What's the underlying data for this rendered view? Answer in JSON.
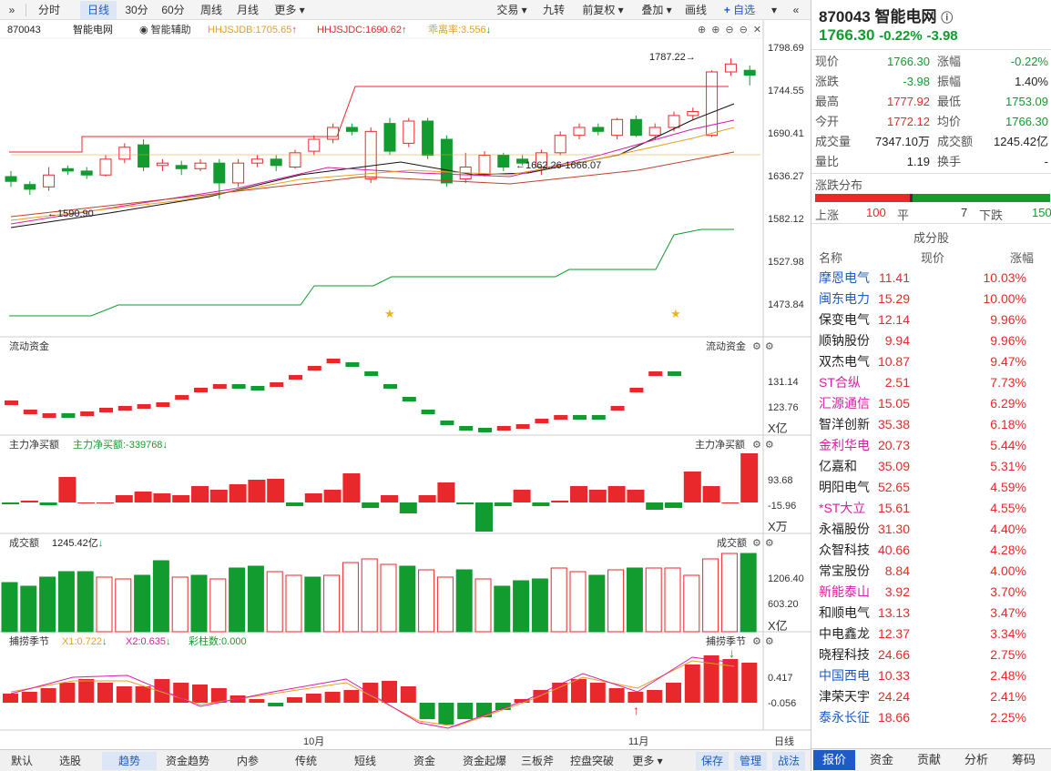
{
  "toolbar": {
    "periods": [
      "分时",
      "日线",
      "30分",
      "60分",
      "周线",
      "月线",
      "更多"
    ],
    "active": "日线",
    "right": [
      "交易",
      "九转",
      "前复权",
      "叠加",
      "画线",
      "自选"
    ]
  },
  "chart_header": {
    "code": "870043",
    "name": "智能电网",
    "indicator": "智能辅助",
    "hhjsjdb": "HHJSJDB:1705.65",
    "hhjsjdc": "HHJSJDC:1690.62",
    "deviation": "乖离率:3.556"
  },
  "price_axis": [
    "1798.69",
    "1744.55",
    "1690.41",
    "1636.27",
    "1582.12",
    "1527.98",
    "1473.84"
  ],
  "annotations": {
    "high": "1787.22",
    "low": "1590.90",
    "range": "1662.26-1666.07"
  },
  "panel_flow": {
    "title": "流动资金",
    "title_right": "流动资金",
    "axis": [
      "131.14",
      "123.76"
    ],
    "unit": "X亿"
  },
  "panel_main": {
    "title": "主力净买额",
    "value": "主力净买额:-339768",
    "title_right": "主力净买额",
    "axis": [
      "93.68",
      "-15.96"
    ],
    "unit": "X万"
  },
  "panel_amount": {
    "title": "成交额",
    "value": "1245.42亿",
    "title_right": "成交额",
    "axis": [
      "1206.40",
      "603.20"
    ],
    "unit": "X亿"
  },
  "panel_season": {
    "title": "捕捞季节",
    "x1": "X1:0.722",
    "x2": "X2:0.635",
    "bars": "彩柱数:0.000",
    "title_right": "捕捞季节",
    "axis": [
      "0.417",
      "-0.056"
    ]
  },
  "x_axis": {
    "oct": "10月",
    "nov": "11月",
    "mode": "日线"
  },
  "bottom": {
    "tabs": [
      "默认",
      "选股",
      "趋势",
      "资金趋势",
      "内参",
      "传统",
      "短线",
      "资金",
      "资金起爆",
      "三板斧",
      "控盘突破",
      "更多"
    ],
    "active": "趋势",
    "right": [
      "保存",
      "管理",
      "战法"
    ]
  },
  "quote": {
    "code": "870043",
    "name": "智能电网",
    "price": "1766.30",
    "pct": "-0.22%",
    "chg": "-3.98",
    "rows": [
      [
        "现价",
        "1766.30",
        "涨幅",
        "-0.22%"
      ],
      [
        "涨跌",
        "-3.98",
        "振幅",
        "1.40%"
      ],
      [
        "最高",
        "1777.92",
        "最低",
        "1753.09"
      ],
      [
        "今开",
        "1772.12",
        "均价",
        "1766.30"
      ],
      [
        "成交量",
        "7347.10万",
        "成交额",
        "1245.42亿"
      ],
      [
        "量比",
        "1.19",
        "换手",
        "-"
      ]
    ]
  },
  "distribution": {
    "title": "涨跌分布",
    "up_label": "上涨",
    "up": "100",
    "flat_label": "平",
    "flat": "7",
    "down_label": "下跌",
    "down": "150"
  },
  "components": {
    "title": "成分股",
    "headers": [
      "名称",
      "现价",
      "涨幅"
    ],
    "rows": [
      [
        "摩恩电气",
        "11.41",
        "10.03%"
      ],
      [
        "闽东电力",
        "15.29",
        "10.00%"
      ],
      [
        "保变电气",
        "12.14",
        "9.96%"
      ],
      [
        "顺钠股份",
        "9.94",
        "9.96%"
      ],
      [
        "双杰电气",
        "10.87",
        "9.47%"
      ],
      [
        "ST合纵",
        "2.51",
        "7.73%"
      ],
      [
        "汇源通信",
        "15.05",
        "6.29%"
      ],
      [
        "智洋创新",
        "35.38",
        "6.18%"
      ],
      [
        "金利华电",
        "20.73",
        "5.44%"
      ],
      [
        "亿嘉和",
        "35.09",
        "5.31%"
      ],
      [
        "明阳电气",
        "52.65",
        "4.59%"
      ],
      [
        "*ST大立",
        "15.61",
        "4.55%"
      ],
      [
        "永福股份",
        "31.30",
        "4.40%"
      ],
      [
        "众智科技",
        "40.66",
        "4.28%"
      ],
      [
        "常宝股份",
        "8.84",
        "4.00%"
      ],
      [
        "新能泰山",
        "3.92",
        "3.70%"
      ],
      [
        "和顺电气",
        "13.13",
        "3.47%"
      ],
      [
        "中电鑫龙",
        "12.37",
        "3.34%"
      ],
      [
        "晓程科技",
        "24.66",
        "2.75%"
      ],
      [
        "中国西电",
        "10.33",
        "2.48%"
      ],
      [
        "津荣天宇",
        "24.24",
        "2.41%"
      ],
      [
        "泰永长征",
        "18.66",
        "2.25%"
      ]
    ]
  },
  "right_tabs": [
    "报价",
    "资金",
    "贡献",
    "分析",
    "筹码"
  ],
  "colors": {
    "up": "#e8282b",
    "down": "#129b2e",
    "accent": "#1e5bc6"
  }
}
